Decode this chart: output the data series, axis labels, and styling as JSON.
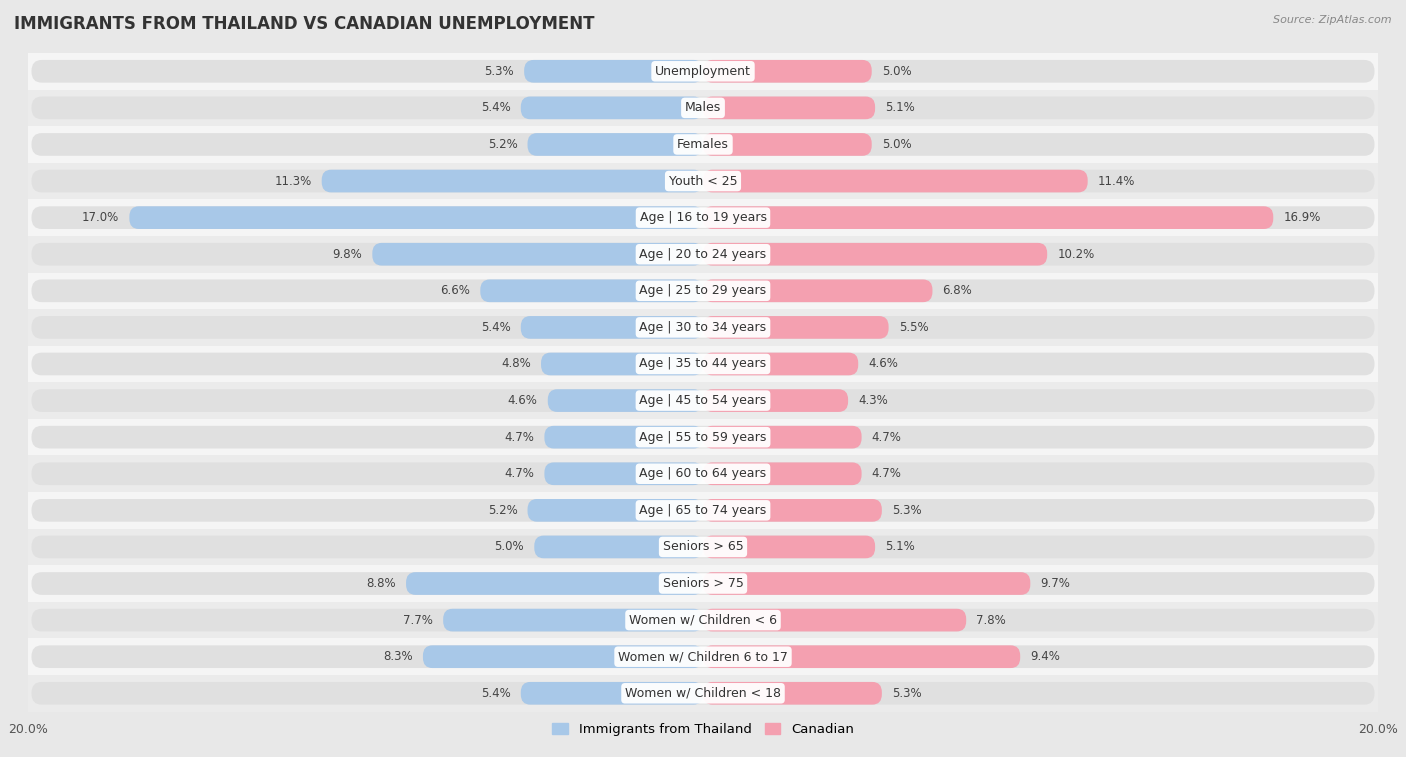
{
  "title": "IMMIGRANTS FROM THAILAND VS CANADIAN UNEMPLOYMENT",
  "source": "Source: ZipAtlas.com",
  "categories": [
    "Unemployment",
    "Males",
    "Females",
    "Youth < 25",
    "Age | 16 to 19 years",
    "Age | 20 to 24 years",
    "Age | 25 to 29 years",
    "Age | 30 to 34 years",
    "Age | 35 to 44 years",
    "Age | 45 to 54 years",
    "Age | 55 to 59 years",
    "Age | 60 to 64 years",
    "Age | 65 to 74 years",
    "Seniors > 65",
    "Seniors > 75",
    "Women w/ Children < 6",
    "Women w/ Children 6 to 17",
    "Women w/ Children < 18"
  ],
  "left_values": [
    5.3,
    5.4,
    5.2,
    11.3,
    17.0,
    9.8,
    6.6,
    5.4,
    4.8,
    4.6,
    4.7,
    4.7,
    5.2,
    5.0,
    8.8,
    7.7,
    8.3,
    5.4
  ],
  "right_values": [
    5.0,
    5.1,
    5.0,
    11.4,
    16.9,
    10.2,
    6.8,
    5.5,
    4.6,
    4.3,
    4.7,
    4.7,
    5.3,
    5.1,
    9.7,
    7.8,
    9.4,
    5.3
  ],
  "left_color": "#a8c8e8",
  "right_color": "#f4a0b0",
  "left_label": "Immigrants from Thailand",
  "right_label": "Canadian",
  "xlim": 20.0,
  "background_color": "#e8e8e8",
  "row_bg_light": "#f5f5f5",
  "row_bg_dark": "#ebebeb",
  "title_fontsize": 12,
  "label_fontsize": 9,
  "value_fontsize": 8.5
}
